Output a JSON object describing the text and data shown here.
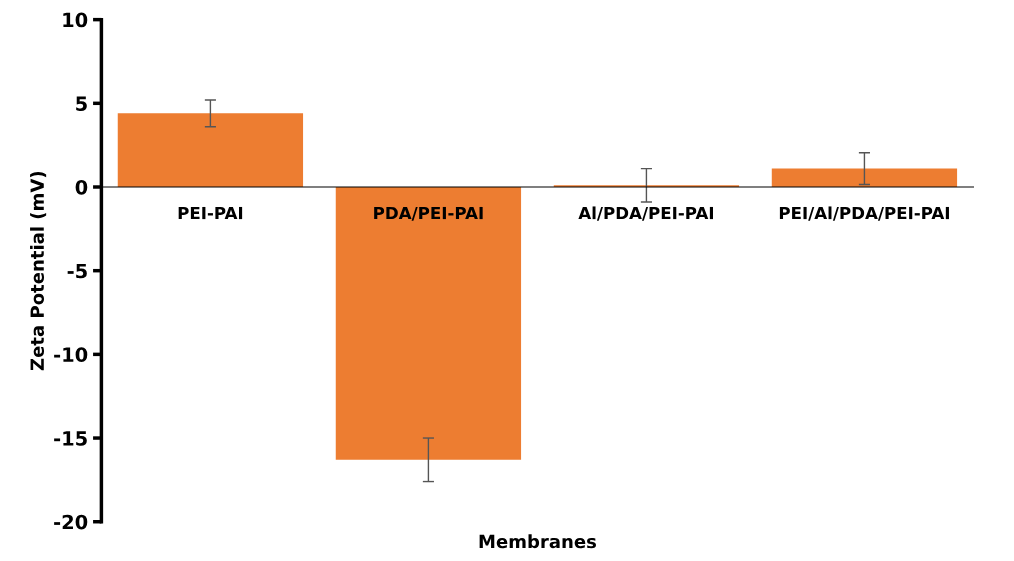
{
  "chart_data": {
    "type": "bar",
    "xlabel": "Membranes",
    "ylabel": "Zeta Potential (mV)",
    "categories": [
      "PEI-PAI",
      "PDA/PEI-PAI",
      "Al/PDA/PEI-PAI",
      "PEI/Al/PDA/PEI-PAI"
    ],
    "values": [
      4.4,
      -16.3,
      0.1,
      1.1
    ],
    "errors": [
      0.8,
      1.3,
      1.0,
      0.95
    ],
    "color": "#ed7d31",
    "ylim": [
      -20,
      10
    ],
    "yticks": [
      -20,
      -15,
      -10,
      -5,
      0,
      5,
      10
    ],
    "grid": false,
    "legend": false
  }
}
